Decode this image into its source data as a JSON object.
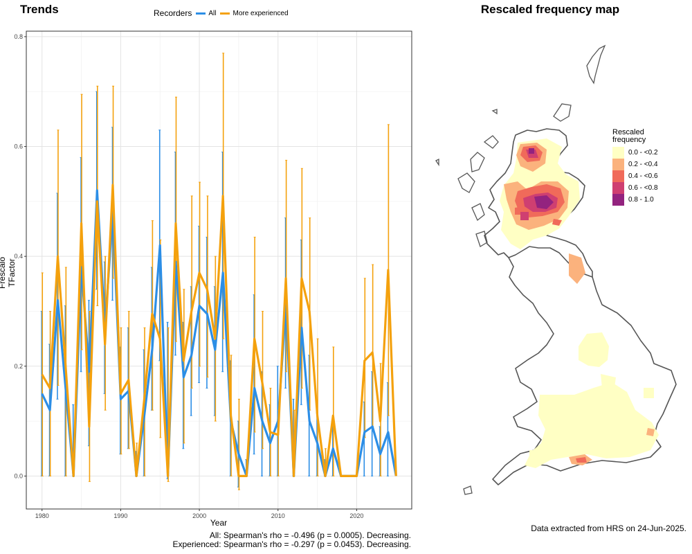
{
  "left_title": "Trends",
  "right_title": "Rescaled frequency map",
  "legend": {
    "title": "Recorders",
    "items": [
      {
        "label": "All",
        "color": "#2c8ee6"
      },
      {
        "label": "More experienced",
        "color": "#f4a10d"
      }
    ]
  },
  "stats": {
    "line1": "All: Spearman's rho = -0.496 (p = 0.0005). Decreasing.",
    "line2": "Experienced: Spearman's rho = -0.297 (p = 0.0453). Decreasing."
  },
  "extract_note": "Data extracted from HRS on 24-Jun-2025.",
  "map_legend": {
    "title": "Rescaled frequency",
    "items": [
      {
        "label": "0.0 - <0.2",
        "color": "#ffffc4"
      },
      {
        "label": "0.2 - <0.4",
        "color": "#fbb27d"
      },
      {
        "label": "0.4 - <0.6",
        "color": "#f06a5a"
      },
      {
        "label": "0.6 - <0.8",
        "color": "#cf3f71"
      },
      {
        "label": "0.8 - 1.0",
        "color": "#93237f"
      }
    ]
  },
  "chart_data": {
    "type": "line",
    "xlabel": "Year",
    "ylabel": "Frescalo TFactor",
    "xlim": [
      1978,
      2027
    ],
    "ylim": [
      -0.06,
      0.81
    ],
    "xticks": [
      1980,
      1990,
      2000,
      2010,
      2020
    ],
    "yticks": [
      0.0,
      0.2,
      0.4,
      0.6,
      0.8
    ],
    "ytick_labels": [
      "0.0",
      "0.2",
      "0.4",
      "0.6",
      "0.8"
    ],
    "grid": true,
    "x": [
      1980,
      1981,
      1982,
      1983,
      1984,
      1985,
      1986,
      1987,
      1988,
      1989,
      1990,
      1991,
      1992,
      1993,
      1994,
      1995,
      1996,
      1997,
      1998,
      1999,
      2000,
      2001,
      2002,
      2003,
      2004,
      2005,
      2006,
      2007,
      2008,
      2009,
      2010,
      2011,
      2012,
      2013,
      2014,
      2015,
      2016,
      2017,
      2018,
      2019,
      2020,
      2021,
      2022,
      2023,
      2024,
      2025
    ],
    "series": [
      {
        "name": "All",
        "color": "#2c8ee6",
        "values": [
          0.15,
          0.12,
          0.32,
          0.16,
          0.0,
          0.38,
          0.19,
          0.52,
          0.27,
          0.48,
          0.14,
          0.155,
          0.0,
          0.11,
          0.23,
          0.42,
          0.0,
          0.39,
          0.18,
          0.22,
          0.31,
          0.295,
          0.23,
          0.37,
          0.1,
          0.04,
          0.0,
          0.16,
          0.1,
          0.06,
          0.1,
          0.31,
          0.0,
          0.27,
          0.1,
          0.06,
          0.0,
          0.05,
          0.0,
          0.0,
          0.0,
          0.08,
          0.09,
          0.04,
          0.08,
          0.0
        ],
        "lower": [
          0.0,
          0.0,
          0.14,
          0.0,
          0.0,
          0.19,
          0.055,
          0.34,
          0.15,
          0.32,
          0.04,
          0.05,
          0.0,
          0.0,
          0.12,
          0.21,
          -0.005,
          0.22,
          0.05,
          0.11,
          0.17,
          0.16,
          0.11,
          0.19,
          0.0,
          -0.02,
          0.0,
          0.04,
          0.0,
          0.0,
          0.0,
          0.16,
          0.0,
          0.13,
          0.0,
          0.0,
          0.0,
          0.0,
          0.0,
          0.0,
          0.0,
          0.0,
          0.0,
          0.0,
          0.0,
          0.0
        ],
        "upper": [
          0.3,
          0.24,
          0.515,
          0.31,
          0.13,
          0.58,
          0.32,
          0.7,
          0.39,
          0.635,
          0.235,
          0.27,
          0.045,
          0.23,
          0.38,
          0.63,
          0.28,
          0.59,
          0.28,
          0.345,
          0.455,
          0.435,
          0.345,
          0.59,
          0.21,
          0.1,
          0.03,
          0.33,
          0.19,
          0.13,
          0.2,
          0.47,
          0.14,
          0.43,
          0.22,
          0.115,
          0.03,
          0.09,
          0.0,
          0.0,
          0.0,
          0.135,
          0.19,
          0.09,
          0.17,
          0.0
        ]
      },
      {
        "name": "More experienced",
        "color": "#f4a10d",
        "values": [
          0.185,
          0.16,
          0.4,
          0.2,
          0.0,
          0.46,
          0.09,
          0.5,
          0.24,
          0.53,
          0.15,
          0.175,
          0.0,
          0.14,
          0.295,
          0.25,
          0.0,
          0.46,
          0.21,
          0.3,
          0.37,
          0.34,
          0.25,
          0.51,
          0.11,
          0.0,
          0.0,
          0.25,
          0.17,
          0.08,
          0.075,
          0.36,
          0.0,
          0.36,
          0.3,
          0.11,
          0.0,
          0.11,
          0.0,
          0.0,
          0.0,
          0.21,
          0.225,
          0.1,
          0.375,
          0.0
        ],
        "lower": [
          0.0,
          0.0,
          0.165,
          0.0,
          0.0,
          0.23,
          -0.01,
          0.31,
          0.12,
          0.36,
          0.04,
          0.05,
          0.0,
          0.0,
          0.12,
          0.07,
          -0.01,
          0.245,
          0.06,
          0.16,
          0.2,
          0.18,
          0.1,
          0.25,
          0.0,
          -0.025,
          0.0,
          0.08,
          0.05,
          0.0,
          0.0,
          0.19,
          0.0,
          0.16,
          0.12,
          0.0,
          0.0,
          0.0,
          0.0,
          0.0,
          0.0,
          0.07,
          0.09,
          0.0,
          0.11,
          0.0
        ],
        "upper": [
          0.37,
          0.3,
          0.63,
          0.38,
          0.0,
          0.695,
          0.3,
          0.71,
          0.4,
          0.71,
          0.27,
          0.3,
          0.06,
          0.27,
          0.465,
          0.43,
          0.27,
          0.69,
          0.34,
          0.51,
          0.535,
          0.51,
          0.4,
          0.77,
          0.22,
          0.14,
          0.03,
          0.435,
          0.3,
          0.16,
          0.12,
          0.575,
          0.12,
          0.56,
          0.47,
          0.25,
          0.05,
          0.235,
          0.0,
          0.0,
          0.0,
          0.36,
          0.385,
          0.205,
          0.64,
          0.0
        ]
      }
    ]
  }
}
